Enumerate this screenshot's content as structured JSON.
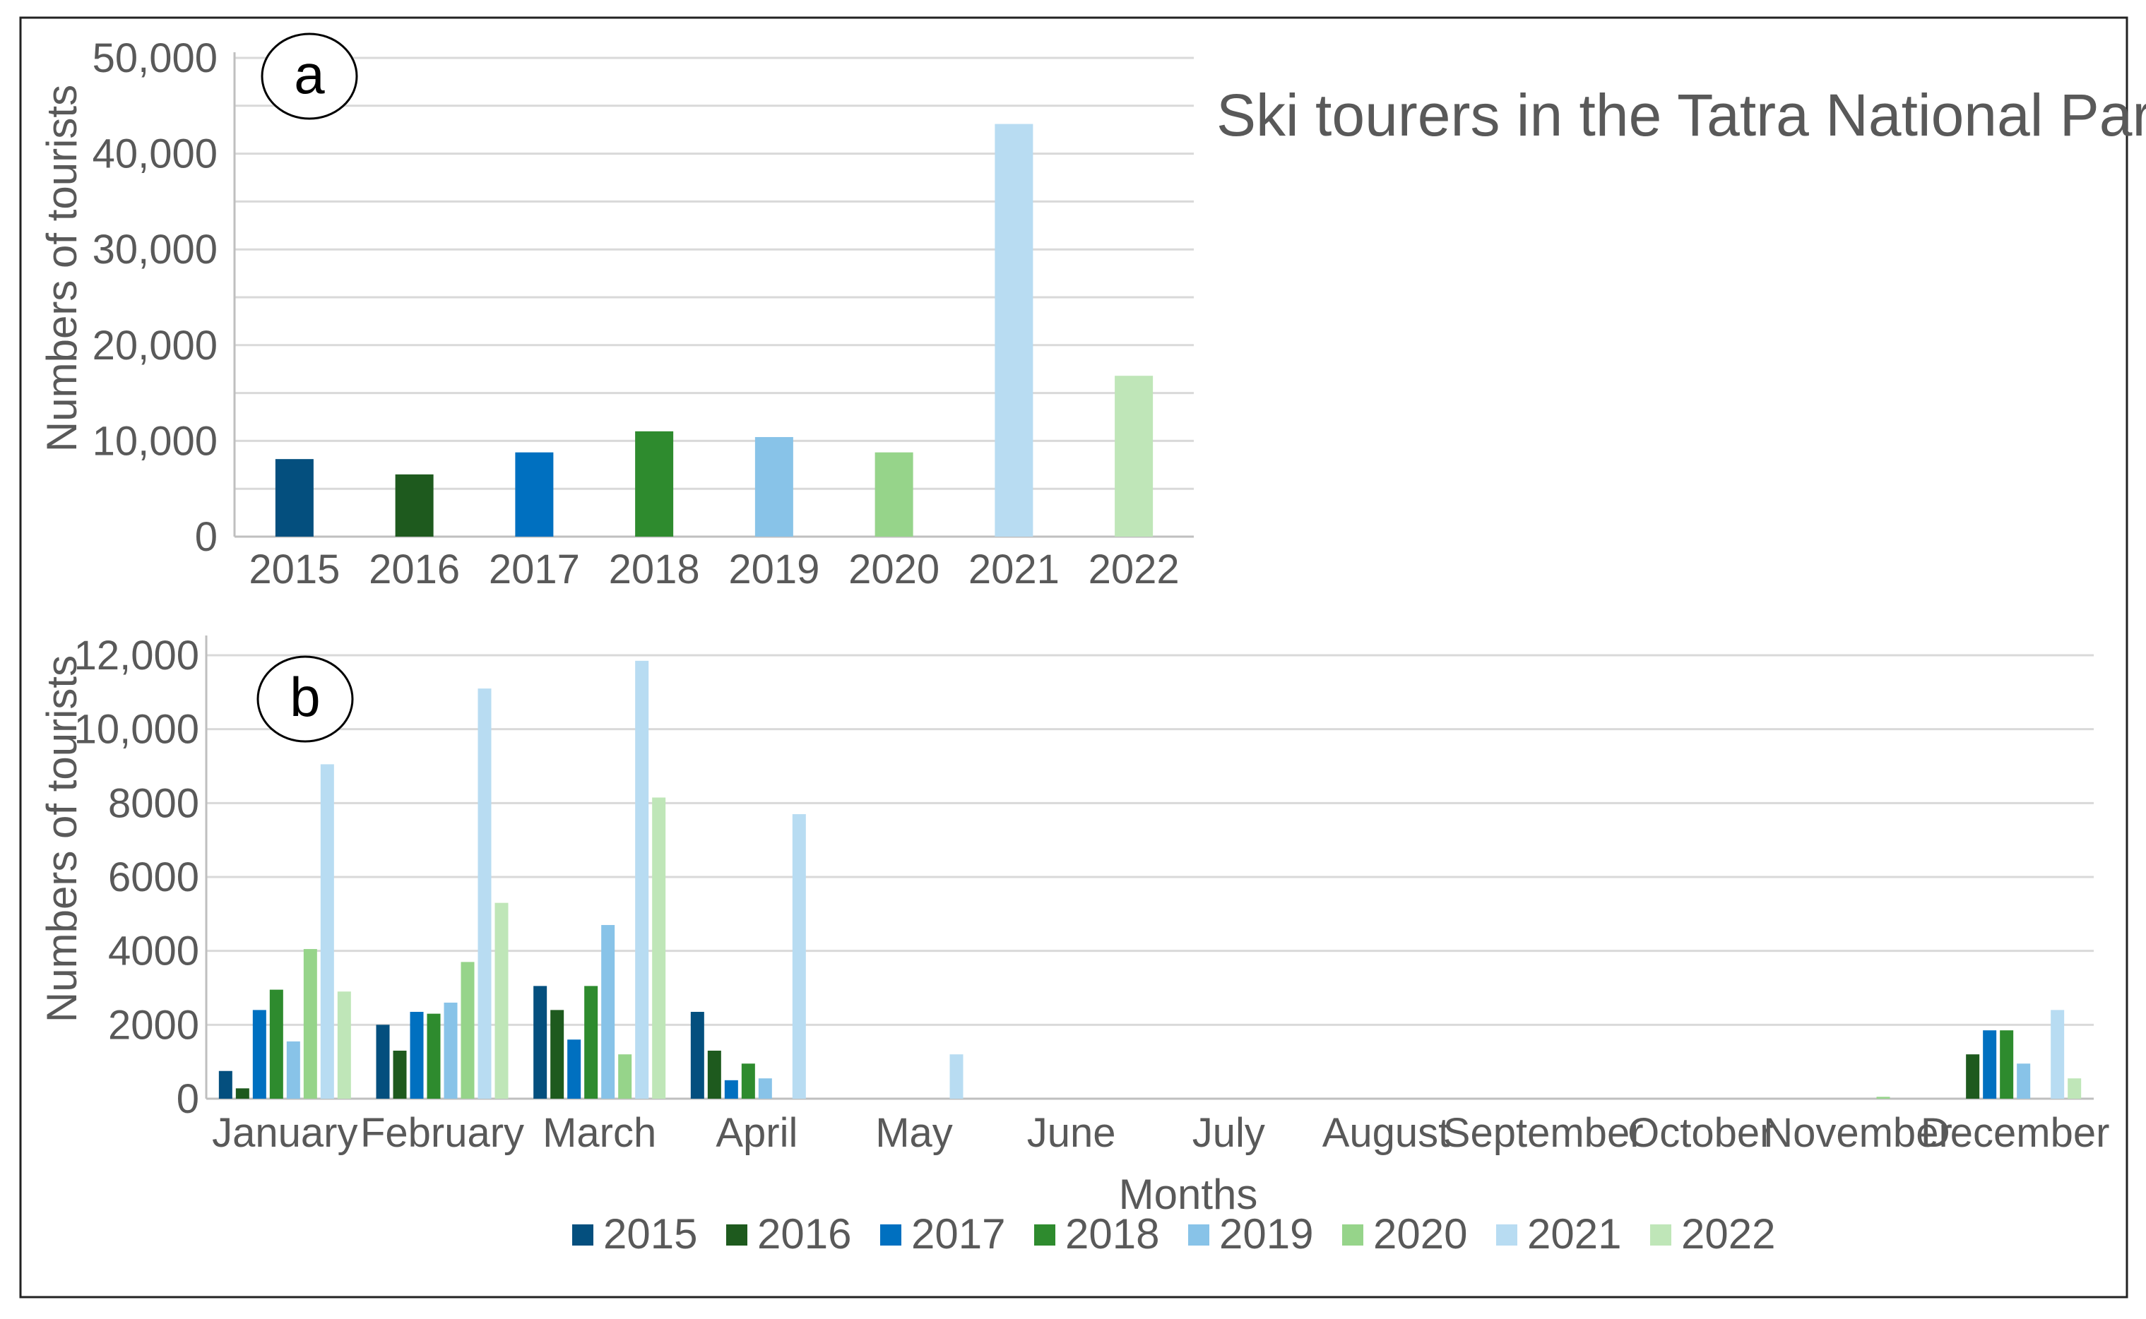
{
  "figure": {
    "title": "Ski tourers in the Tatra National Park"
  },
  "chart_data": [
    {
      "panel": "a",
      "type": "bar",
      "title": "Ski tourers in the Tatra National Park",
      "xlabel": "",
      "ylabel": "Numbers of tourists",
      "ylim": [
        0,
        50000
      ],
      "yticks": [
        0,
        10000,
        20000,
        30000,
        40000,
        50000
      ],
      "ytick_labels": [
        "0",
        "10,000",
        "20,000",
        "30,000",
        "40,000",
        "50,000"
      ],
      "grid": true,
      "categories": [
        "2015",
        "2016",
        "2017",
        "2018",
        "2019",
        "2020",
        "2021",
        "2022"
      ],
      "values": [
        8100,
        6500,
        8800,
        11000,
        10400,
        8800,
        43100,
        16800
      ],
      "colors": [
        "#044f7e",
        "#1e5a1e",
        "#0070c0",
        "#2e8b2e",
        "#88c3e8",
        "#96d48a",
        "#b8dcf2",
        "#bfe6b8"
      ]
    },
    {
      "panel": "b",
      "type": "bar",
      "xlabel": "Months",
      "ylabel": "Numbers of tourists",
      "ylim": [
        0,
        12000
      ],
      "yticks": [
        0,
        2000,
        4000,
        6000,
        8000,
        10000,
        12000
      ],
      "ytick_labels": [
        "0",
        "2000",
        "4000",
        "6000",
        "8000",
        "10,000",
        "12,000"
      ],
      "grid": true,
      "legend_position": "bottom",
      "categories": [
        "January",
        "February",
        "March",
        "April",
        "May",
        "June",
        "July",
        "August",
        "September",
        "October",
        "November",
        "December"
      ],
      "series": [
        {
          "name": "2015",
          "color": "#044f7e",
          "values": [
            750,
            2000,
            3050,
            2350,
            0,
            0,
            0,
            0,
            0,
            0,
            0,
            0
          ]
        },
        {
          "name": "2016",
          "color": "#1e5a1e",
          "values": [
            280,
            1300,
            2400,
            1300,
            0,
            0,
            0,
            0,
            0,
            0,
            0,
            1200
          ]
        },
        {
          "name": "2017",
          "color": "#0070c0",
          "values": [
            2400,
            2350,
            1600,
            500,
            0,
            0,
            0,
            0,
            0,
            0,
            0,
            1850
          ]
        },
        {
          "name": "2018",
          "color": "#2e8b2e",
          "values": [
            2950,
            2300,
            3050,
            950,
            0,
            0,
            0,
            0,
            0,
            0,
            0,
            1850
          ]
        },
        {
          "name": "2019",
          "color": "#88c3e8",
          "values": [
            1550,
            2600,
            4700,
            550,
            0,
            0,
            0,
            0,
            0,
            0,
            0,
            950
          ]
        },
        {
          "name": "2020",
          "color": "#96d48a",
          "values": [
            4050,
            3700,
            1200,
            0,
            0,
            0,
            0,
            0,
            0,
            0,
            50,
            0
          ]
        },
        {
          "name": "2021",
          "color": "#b8dcf2",
          "values": [
            9050,
            11100,
            11850,
            7700,
            1200,
            0,
            0,
            0,
            0,
            0,
            0,
            2400
          ]
        },
        {
          "name": "2022",
          "color": "#bfe6b8",
          "values": [
            2900,
            5300,
            8150,
            0,
            0,
            0,
            0,
            0,
            0,
            0,
            0,
            550
          ]
        }
      ]
    }
  ]
}
